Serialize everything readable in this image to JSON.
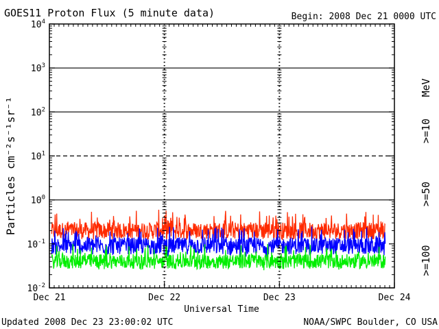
{
  "chart_data": {
    "type": "line",
    "title": "GOES11 Proton Flux (5 minute data)",
    "begin_label": "Begin: 2008 Dec 21 0000 UTC",
    "xlabel": "Universal Time",
    "ylabel": "Particles cm⁻²s⁻¹sr⁻¹",
    "y_scale": "log",
    "ylim": [
      0.01,
      10000
    ],
    "y_ticks": [
      {
        "base": "10",
        "exp": "4"
      },
      {
        "base": "10",
        "exp": "3"
      },
      {
        "base": "10",
        "exp": "2"
      },
      {
        "base": "10",
        "exp": "1"
      },
      {
        "base": "10",
        "exp": "0"
      },
      {
        "base": "10",
        "exp": "-1"
      },
      {
        "base": "10",
        "exp": "-2"
      }
    ],
    "x_ticks": [
      "Dec 21",
      "Dec 22",
      "Dec 23",
      "Dec 24"
    ],
    "xlim_days": [
      0,
      3
    ],
    "units_label": "MeV",
    "series": [
      {
        "name": ">=10",
        "color": "#ff2a00",
        "typical": 0.2,
        "min": 0.12,
        "max": 0.6
      },
      {
        "name": ">=50",
        "color": "#0000ff",
        "typical": 0.09,
        "min": 0.05,
        "max": 0.25
      },
      {
        "name": ">=100",
        "color": "#00ee00",
        "typical": 0.04,
        "min": 0.025,
        "max": 0.1
      }
    ],
    "thresholds": [
      {
        "value": 1000,
        "style": "solid"
      },
      {
        "value": 100,
        "style": "solid"
      },
      {
        "value": 10,
        "style": "dashed"
      },
      {
        "value": 1,
        "style": "solid"
      }
    ]
  },
  "footer": {
    "updated": "Updated 2008 Dec 23 23:00:02 UTC",
    "credit": "NOAA/SWPC Boulder, CO USA"
  }
}
